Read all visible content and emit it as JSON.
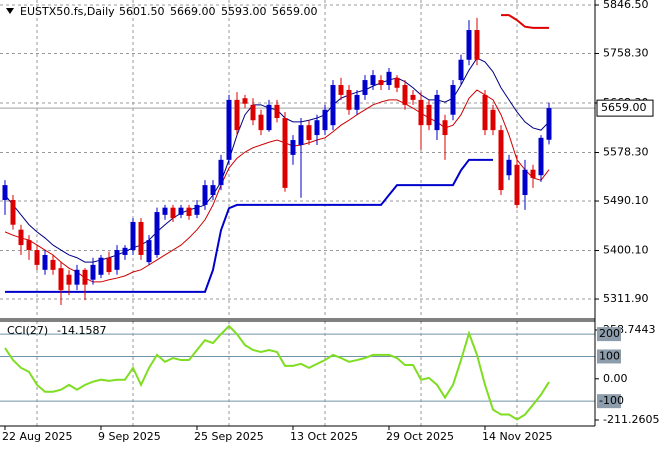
{
  "chart_data": [
    {
      "type": "candlestick",
      "title": "EUSTX50.fs,Daily",
      "ohlc_labels": [
        "5601.50",
        "5669.00",
        "5593.00",
        "5659.00"
      ],
      "categories": [
        "22 Aug 2025",
        null,
        null,
        null,
        null,
        null,
        null,
        null,
        null,
        null,
        null,
        null,
        "9 Sep 2025",
        null,
        null,
        null,
        null,
        null,
        null,
        null,
        null,
        null,
        null,
        null,
        "25 Sep 2025",
        null,
        null,
        null,
        null,
        null,
        null,
        null,
        null,
        null,
        null,
        null,
        "13 Oct 2025",
        null,
        null,
        null,
        null,
        null,
        null,
        null,
        null,
        null,
        null,
        null,
        "29 Oct 2025",
        null,
        null,
        null,
        null,
        null,
        null,
        null,
        null,
        null,
        null,
        null,
        "14 Nov 2025",
        null,
        null,
        null,
        null,
        null,
        null,
        null,
        null
      ],
      "open": [
        5492,
        5492,
        5438,
        5419,
        5401,
        5365,
        5383,
        5368,
        5356,
        5338,
        5365,
        5347,
        5356,
        5387,
        5365,
        5392,
        5401,
        5452,
        5379,
        5392,
        5465,
        5478,
        5465,
        5478,
        5465,
        5483,
        5501,
        5519,
        5565,
        5674,
        5677,
        5665,
        5647,
        5619,
        5665,
        5641,
        5574,
        5592,
        5628,
        5610,
        5619,
        5628,
        5701,
        5692,
        5656,
        5683,
        5701,
        5710,
        5701,
        5714,
        5701,
        5683,
        5674,
        5665,
        5619,
        5637,
        5647,
        5710,
        5747,
        5801,
        5683,
        5656,
        5619,
        5537,
        5556,
        5501,
        5547,
        5537,
        5601.5
      ],
      "high": [
        5528,
        5501,
        5447,
        5428,
        5410,
        5401,
        5392,
        5379,
        5365,
        5374,
        5368,
        5387,
        5392,
        5398,
        5410,
        5410,
        5459,
        5459,
        5428,
        5478,
        5483,
        5483,
        5483,
        5483,
        5492,
        5528,
        5528,
        5574,
        5683,
        5688,
        5683,
        5677,
        5656,
        5674,
        5674,
        5652,
        5610,
        5641,
        5637,
        5647,
        5665,
        5710,
        5714,
        5701,
        5692,
        5719,
        5728,
        5719,
        5732,
        5719,
        5710,
        5692,
        5688,
        5674,
        5692,
        5647,
        5710,
        5756,
        5819,
        5823,
        5692,
        5665,
        5628,
        5574,
        5574,
        5565,
        5556,
        5610,
        5669
      ],
      "low": [
        5465,
        5438,
        5392,
        5383,
        5365,
        5356,
        5356,
        5301,
        5319,
        5328,
        5310,
        5338,
        5350,
        5356,
        5356,
        5383,
        5392,
        5383,
        5374,
        5387,
        5456,
        5452,
        5459,
        5456,
        5459,
        5474,
        5492,
        5510,
        5556,
        5610,
        5659,
        5628,
        5610,
        5616,
        5633,
        5507,
        5556,
        5496,
        5592,
        5592,
        5610,
        5619,
        5674,
        5647,
        5647,
        5674,
        5692,
        5692,
        5692,
        5688,
        5656,
        5665,
        5583,
        5619,
        5601,
        5565,
        5637,
        5701,
        5737,
        5737,
        5610,
        5610,
        5501,
        5528,
        5477,
        5474,
        5514,
        5525,
        5593
      ],
      "close": [
        5519,
        5447,
        5410,
        5401,
        5374,
        5392,
        5365,
        5328,
        5338,
        5365,
        5338,
        5374,
        5387,
        5361,
        5401,
        5405,
        5452,
        5392,
        5419,
        5470,
        5478,
        5459,
        5478,
        5463,
        5483,
        5519,
        5519,
        5565,
        5674,
        5619,
        5667,
        5637,
        5619,
        5665,
        5641,
        5514,
        5601,
        5628,
        5601,
        5637,
        5656,
        5701,
        5683,
        5656,
        5683,
        5710,
        5719,
        5701,
        5725,
        5696,
        5665,
        5674,
        5628,
        5628,
        5683,
        5610,
        5701,
        5747,
        5801,
        5747,
        5619,
        5619,
        5510,
        5565,
        5483,
        5547,
        5532,
        5605,
        5659
      ],
      "up_color": "#0000cc",
      "down_color": "#dd0000",
      "series": [
        {
          "color": "#000080",
          "line_width": 1,
          "values": [
            5501,
            5483,
            5465,
            5447,
            5434,
            5423,
            5410,
            5401,
            5392,
            5387,
            5379,
            5379,
            5383,
            5387,
            5392,
            5398,
            5405,
            5410,
            5419,
            5434,
            5447,
            5459,
            5468,
            5474,
            5478,
            5483,
            5501,
            5525,
            5565,
            5610,
            5647,
            5665,
            5665,
            5659,
            5656,
            5641,
            5634,
            5634,
            5637,
            5641,
            5647,
            5665,
            5677,
            5683,
            5688,
            5692,
            5699,
            5705,
            5710,
            5714,
            5707,
            5696,
            5683,
            5674,
            5674,
            5670,
            5677,
            5701,
            5728,
            5750,
            5743,
            5725,
            5696,
            5674,
            5652,
            5634,
            5623,
            5619,
            5634
          ]
        },
        {
          "color": "#cc0000",
          "line_width": 1,
          "values": [
            5434,
            5428,
            5423,
            5419,
            5410,
            5401,
            5392,
            5379,
            5368,
            5361,
            5350,
            5343,
            5343,
            5347,
            5350,
            5354,
            5361,
            5365,
            5374,
            5383,
            5392,
            5401,
            5410,
            5423,
            5438,
            5456,
            5483,
            5519,
            5550,
            5568,
            5579,
            5587,
            5592,
            5597,
            5601,
            5596,
            5590,
            5592,
            5596,
            5601,
            5605,
            5616,
            5628,
            5637,
            5647,
            5656,
            5665,
            5670,
            5674,
            5674,
            5667,
            5659,
            5650,
            5641,
            5634,
            5623,
            5628,
            5647,
            5677,
            5692,
            5683,
            5674,
            5647,
            5610,
            5565,
            5547,
            5532,
            5528,
            5547
          ]
        },
        {
          "color": "#0000cc",
          "line_width": 2,
          "values": [
            5325,
            5325,
            5325,
            5325,
            5325,
            5325,
            5325,
            5325,
            5325,
            5325,
            5325,
            5325,
            5325,
            5325,
            5325,
            5325,
            5325,
            5325,
            5325,
            5325,
            5325,
            5325,
            5325,
            5325,
            5325,
            5325,
            5365,
            5437,
            5477,
            5483,
            5483,
            5483,
            5483,
            5483,
            5483,
            5483,
            5483,
            5483,
            5483,
            5483,
            5483,
            5483,
            5483,
            5483,
            5483,
            5483,
            5483,
            5483,
            5501,
            5519,
            5519,
            5519,
            5519,
            5519,
            5519,
            5519,
            5519,
            5546,
            5565,
            5565,
            5565,
            5565,
            null,
            null,
            null,
            null,
            null,
            null,
            null
          ]
        },
        {
          "color": "#dd0000",
          "line_width": 2,
          "values": [
            null,
            null,
            null,
            null,
            null,
            null,
            null,
            null,
            null,
            null,
            null,
            null,
            null,
            null,
            null,
            null,
            null,
            null,
            null,
            null,
            null,
            null,
            null,
            null,
            null,
            null,
            null,
            null,
            null,
            null,
            null,
            null,
            null,
            null,
            null,
            null,
            null,
            null,
            null,
            null,
            null,
            null,
            null,
            null,
            null,
            null,
            null,
            null,
            null,
            null,
            null,
            null,
            null,
            null,
            null,
            null,
            null,
            null,
            null,
            null,
            null,
            null,
            5828,
            5828,
            5819,
            5807,
            5805,
            5805,
            5805
          ]
        }
      ],
      "ylim": [
        5277.4,
        5855.6
      ],
      "yticks": [
        {
          "value": 5846.5,
          "label": "5846.50"
        },
        {
          "value": 5758.3,
          "label": "5758.30"
        },
        {
          "value": 5668.3,
          "label": "5668.30"
        },
        {
          "value": 5578.3,
          "label": "5578.30"
        },
        {
          "value": 5490.1,
          "label": "5490.10"
        },
        {
          "value": 5400.1,
          "label": "5400.10"
        },
        {
          "value": 5311.9,
          "label": "5311.90"
        }
      ],
      "current_price": {
        "value": 5659,
        "label": "5659.00"
      },
      "grid": true
    },
    {
      "type": "line",
      "title": "CCI(27)",
      "value_label": "-14.1587",
      "color": "#7fdd22",
      "values": [
        138,
        84,
        49,
        31,
        -27,
        -58,
        -58,
        -49,
        -27,
        -49,
        -27,
        -13,
        -4,
        -9,
        -4,
        -4,
        49,
        -27,
        49,
        107,
        76,
        93,
        84,
        84,
        129,
        173,
        160,
        200,
        236,
        200,
        151,
        129,
        120,
        129,
        120,
        58,
        58,
        67,
        49,
        67,
        84,
        107,
        93,
        76,
        84,
        93,
        107,
        107,
        107,
        93,
        62,
        62,
        -4,
        4,
        -27,
        -84,
        -27,
        84,
        204,
        107,
        -27,
        -138,
        -160,
        -160,
        -182,
        -160,
        -116,
        -71,
        -14.1587
      ],
      "ylim": [
        -211.2605,
        258.7443
      ],
      "yticks": [
        258.7443,
        {
          "value": 0,
          "label": "0.00"
        },
        -211.2605
      ],
      "levels": [
        200,
        100,
        -100
      ],
      "level_color": "#6f94a8"
    }
  ]
}
